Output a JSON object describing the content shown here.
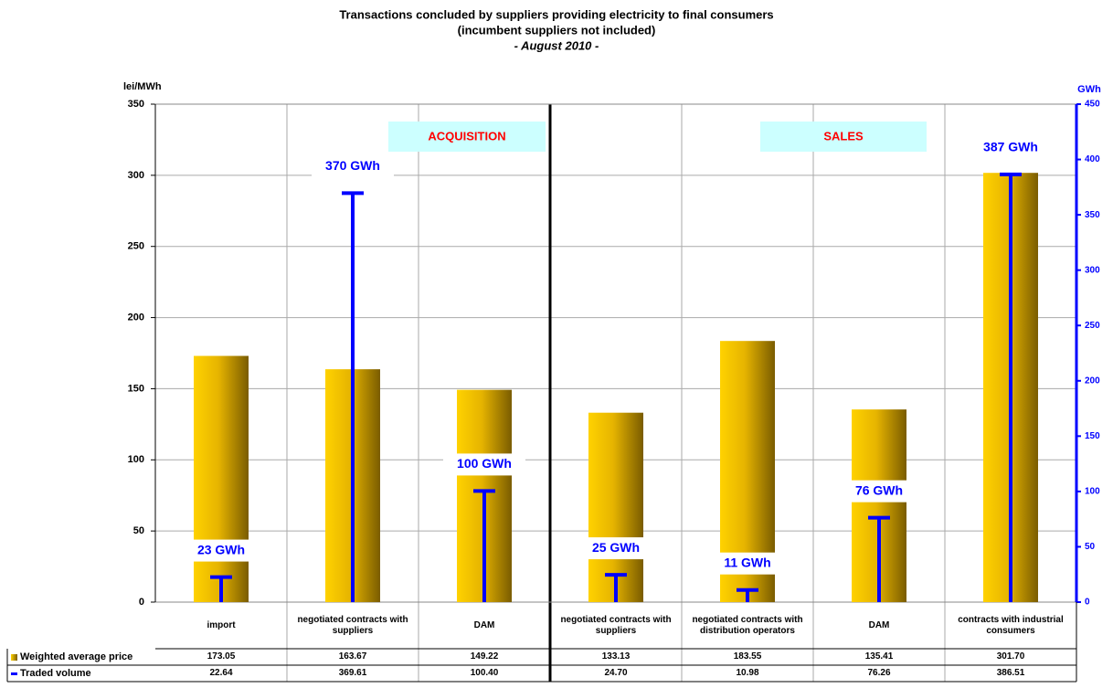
{
  "chart_data": {
    "type": "bar-volume",
    "title": "Transactions concluded by suppliers providing electricity to final consumers",
    "subtitle": "(incumbent suppliers not included)",
    "period": "- August 2010 -",
    "y_label": "lei/MWh",
    "y2_label": "GWh",
    "annotations": [
      "ACQUISITION",
      "SALES"
    ],
    "categories": [
      "import",
      "negotiated contracts with suppliers",
      "DAM",
      "negotiated contracts with suppliers",
      "negotiated contracts with distribution operators",
      "DAM",
      "contracts with industrial consumers"
    ],
    "series": [
      {
        "name": "Weighted average price",
        "color": "#e6b800",
        "values": [
          173.05,
          163.67,
          149.22,
          133.13,
          183.55,
          135.41,
          301.7
        ],
        "value_labels": [
          "173.05",
          "163.67",
          "149.22",
          "133.13",
          "183.55",
          "135.41",
          "301.70"
        ]
      },
      {
        "name": "Traded volume",
        "color": "#0000ff",
        "axis": "y2",
        "values": [
          22.64,
          369.61,
          100.4,
          24.7,
          10.98,
          76.26,
          386.51
        ],
        "value_labels": [
          "22.64",
          "369.61",
          "100.40",
          "24.70",
          "10.98",
          "76.26",
          "386.51"
        ],
        "data_labels": [
          "23 GWh",
          "370 GWh",
          "100 GWh",
          "25 GWh",
          "11 GWh",
          "76 GWh",
          "387 GWh"
        ]
      }
    ],
    "ylim": [
      0,
      350
    ],
    "yticks": [
      0,
      50,
      100,
      150,
      200,
      250,
      300,
      350
    ],
    "y2lim": [
      0,
      450
    ],
    "y2ticks": [
      0,
      50,
      100,
      150,
      200,
      250,
      300,
      350,
      400,
      450
    ],
    "grid": true
  }
}
